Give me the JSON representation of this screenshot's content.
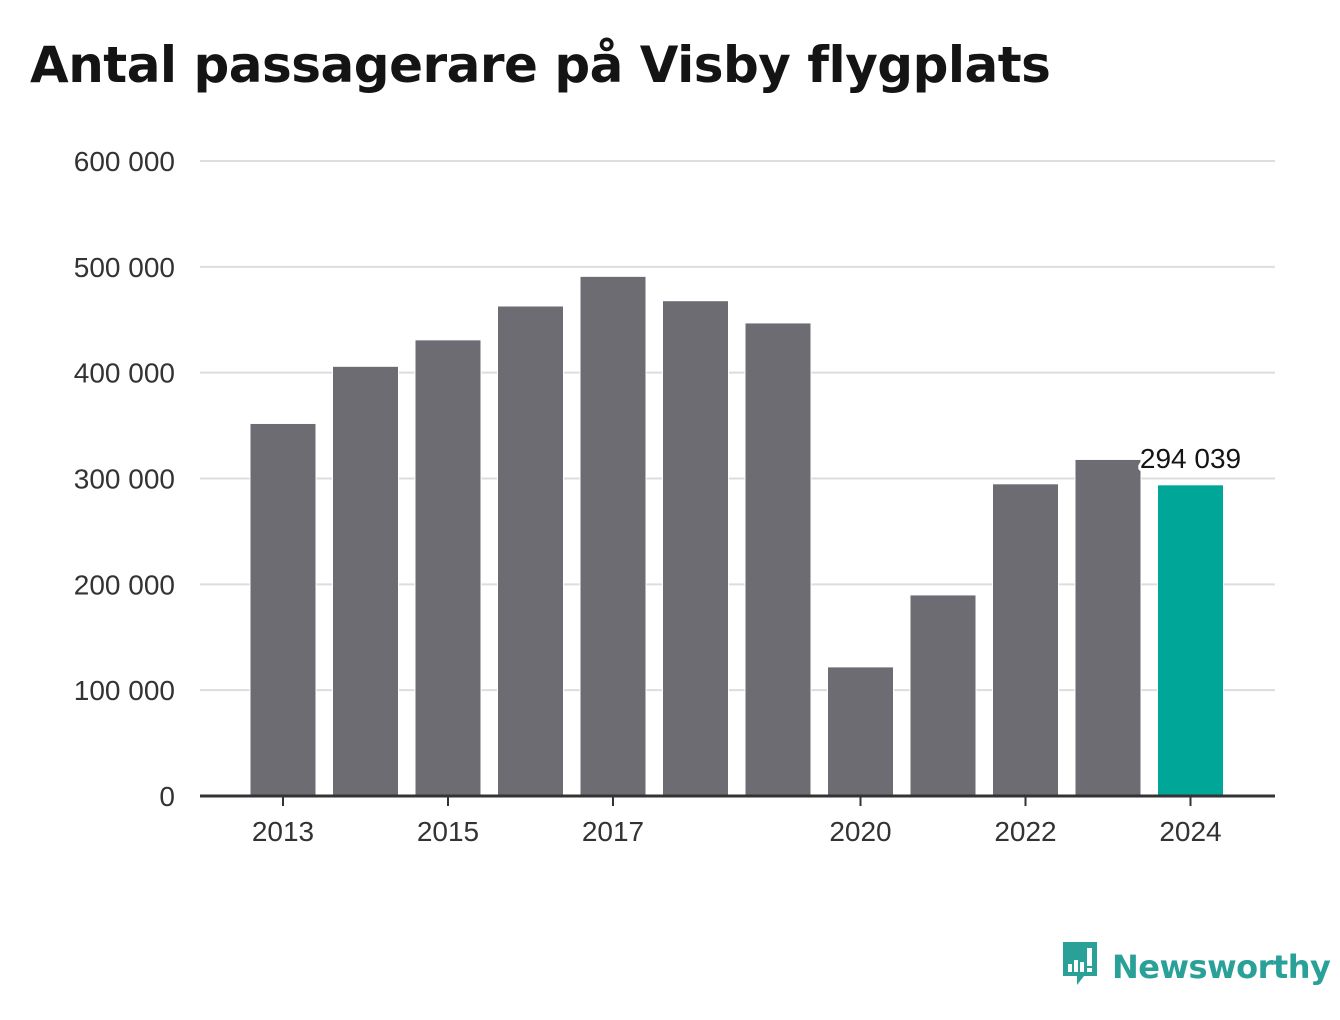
{
  "chart_data": {
    "type": "bar",
    "title": "Antal passagerare på Visby flygplats",
    "categories": [
      "2013",
      "2014",
      "2015",
      "2016",
      "2017",
      "2018",
      "2019",
      "2020",
      "2021",
      "2022",
      "2023",
      "2024"
    ],
    "values": [
      352000,
      406000,
      431000,
      463000,
      491000,
      468000,
      447000,
      122000,
      190000,
      295000,
      318000,
      294039
    ],
    "x_tick_labels": [
      "2013",
      "2015",
      "2017",
      "2020",
      "2022",
      "2024"
    ],
    "y_ticks": [
      0,
      100000,
      200000,
      300000,
      400000,
      500000,
      600000
    ],
    "y_tick_labels": [
      "0",
      "100 000",
      "200 000",
      "300 000",
      "400 000",
      "500 000",
      "600 000"
    ],
    "ylim": [
      0,
      600000
    ],
    "grid": true,
    "highlight_index": 11,
    "annotation": "294 039",
    "colors": {
      "bar": "#6d6c73",
      "highlight": "#00a698",
      "grid": "#dddddd",
      "axis": "#333333"
    }
  },
  "brand": {
    "name": "Newsworthy",
    "icon": "bar-chart-speech-bubble-icon",
    "color": "#2aa198"
  }
}
